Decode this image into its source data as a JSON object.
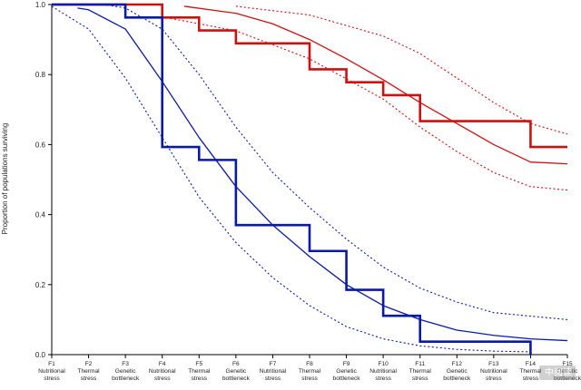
{
  "chart_data": {
    "type": "line",
    "xlabel": "",
    "ylabel": "Proportion of populations surviving",
    "ylim": [
      0,
      1
    ],
    "yticks": [
      0.0,
      0.2,
      0.4,
      0.6,
      0.8,
      1.0
    ],
    "ytick_labels": [
      "0.0",
      "0.2",
      "0.4",
      "0.6",
      "0.8",
      "1.0"
    ],
    "categories": [
      [
        "F1",
        "Nutritional",
        "stress"
      ],
      [
        "F2",
        "Thermal",
        "stress"
      ],
      [
        "F3",
        "Genetic",
        "bottleneck"
      ],
      [
        "F4",
        "Nutritional",
        "stress"
      ],
      [
        "F5",
        "Thermal",
        "stress"
      ],
      [
        "F6",
        "Genetic",
        "bottleneck"
      ],
      [
        "F7",
        "Nutritional",
        "stress"
      ],
      [
        "F8",
        "Thermal",
        "stress"
      ],
      [
        "F9",
        "Genetic",
        "bottleneck"
      ],
      [
        "F10",
        "Nutritional",
        "stress"
      ],
      [
        "F11",
        "Thermal",
        "stress"
      ],
      [
        "F12",
        "Genetic",
        "bottleneck"
      ],
      [
        "F13",
        "Nutritional",
        "stress"
      ],
      [
        "F14",
        "Thermal",
        "stress"
      ],
      [
        "F15",
        "Genetic",
        "bottleneck"
      ]
    ],
    "grid": false,
    "legend": "none",
    "series": [
      {
        "kind": "step",
        "color": "#cc1111",
        "points": [
          [
            1,
            1.0
          ],
          [
            4,
            1.0
          ],
          [
            4,
            0.963
          ],
          [
            5,
            0.963
          ],
          [
            5,
            0.926
          ],
          [
            6,
            0.926
          ],
          [
            6,
            0.889
          ],
          [
            8,
            0.889
          ],
          [
            8,
            0.815
          ],
          [
            9,
            0.815
          ],
          [
            9,
            0.778
          ],
          [
            10,
            0.778
          ],
          [
            10,
            0.741
          ],
          [
            11,
            0.741
          ],
          [
            11,
            0.667
          ],
          [
            14,
            0.667
          ],
          [
            14,
            0.593
          ],
          [
            15,
            0.593
          ]
        ]
      },
      {
        "kind": "step",
        "color": "#0a1aa8",
        "points": [
          [
            1,
            1.0
          ],
          [
            3,
            1.0
          ],
          [
            3,
            0.963
          ],
          [
            4,
            0.963
          ],
          [
            4,
            0.593
          ],
          [
            5,
            0.593
          ],
          [
            5,
            0.556
          ],
          [
            6,
            0.556
          ],
          [
            6,
            0.37
          ],
          [
            8,
            0.37
          ],
          [
            8,
            0.296
          ],
          [
            9,
            0.296
          ],
          [
            9,
            0.185
          ],
          [
            10,
            0.185
          ],
          [
            10,
            0.111
          ],
          [
            11,
            0.111
          ],
          [
            11,
            0.037
          ],
          [
            14,
            0.037
          ],
          [
            14,
            0.0
          ]
        ]
      },
      {
        "kind": "fit",
        "color": "#cc1111",
        "points": [
          [
            4.6,
            0.995
          ],
          [
            6,
            0.975
          ],
          [
            7,
            0.945
          ],
          [
            8,
            0.9
          ],
          [
            9,
            0.845
          ],
          [
            10,
            0.785
          ],
          [
            11,
            0.72
          ],
          [
            12,
            0.66
          ],
          [
            13,
            0.6
          ],
          [
            14,
            0.55
          ],
          [
            15,
            0.545
          ]
        ]
      },
      {
        "kind": "ci",
        "color": "#cc1111",
        "points": [
          [
            6,
            0.995
          ],
          [
            8,
            0.97
          ],
          [
            10,
            0.91
          ],
          [
            11,
            0.86
          ],
          [
            12,
            0.79
          ],
          [
            13,
            0.72
          ],
          [
            14,
            0.66
          ],
          [
            15,
            0.63
          ]
        ]
      },
      {
        "kind": "ci",
        "color": "#cc1111",
        "points": [
          [
            4,
            0.965
          ],
          [
            6,
            0.925
          ],
          [
            8,
            0.845
          ],
          [
            10,
            0.73
          ],
          [
            11,
            0.65
          ],
          [
            12,
            0.58
          ],
          [
            13,
            0.52
          ],
          [
            14,
            0.48
          ],
          [
            15,
            0.47
          ]
        ]
      },
      {
        "kind": "fit",
        "color": "#0a1aa8",
        "points": [
          [
            1.7,
            0.99
          ],
          [
            2,
            0.985
          ],
          [
            3,
            0.93
          ],
          [
            4,
            0.78
          ],
          [
            5,
            0.62
          ],
          [
            6,
            0.48
          ],
          [
            7,
            0.37
          ],
          [
            8,
            0.28
          ],
          [
            9,
            0.2
          ],
          [
            10,
            0.14
          ],
          [
            11,
            0.1
          ],
          [
            12,
            0.07
          ],
          [
            13,
            0.055
          ],
          [
            14,
            0.045
          ],
          [
            15,
            0.04
          ]
        ]
      },
      {
        "kind": "ci",
        "color": "#0a1aa8",
        "points": [
          [
            2.4,
            1.0
          ],
          [
            3,
            0.99
          ],
          [
            4,
            0.93
          ],
          [
            5,
            0.8
          ],
          [
            6,
            0.65
          ],
          [
            7,
            0.52
          ],
          [
            8,
            0.42
          ],
          [
            9,
            0.33
          ],
          [
            10,
            0.25
          ],
          [
            11,
            0.19
          ],
          [
            12,
            0.15
          ],
          [
            13,
            0.12
          ],
          [
            14,
            0.11
          ],
          [
            15,
            0.1
          ]
        ]
      },
      {
        "kind": "ci",
        "color": "#0a1aa8",
        "points": [
          [
            1,
            0.995
          ],
          [
            2,
            0.93
          ],
          [
            3,
            0.79
          ],
          [
            4,
            0.62
          ],
          [
            5,
            0.45
          ],
          [
            6,
            0.32
          ],
          [
            7,
            0.22
          ],
          [
            8,
            0.14
          ],
          [
            9,
            0.08
          ],
          [
            10,
            0.045
          ],
          [
            11,
            0.025
          ],
          [
            12,
            0.015
          ],
          [
            13,
            0.01
          ],
          [
            14,
            0.008
          ]
        ]
      }
    ]
  },
  "watermark": {
    "text": "中阅读"
  }
}
